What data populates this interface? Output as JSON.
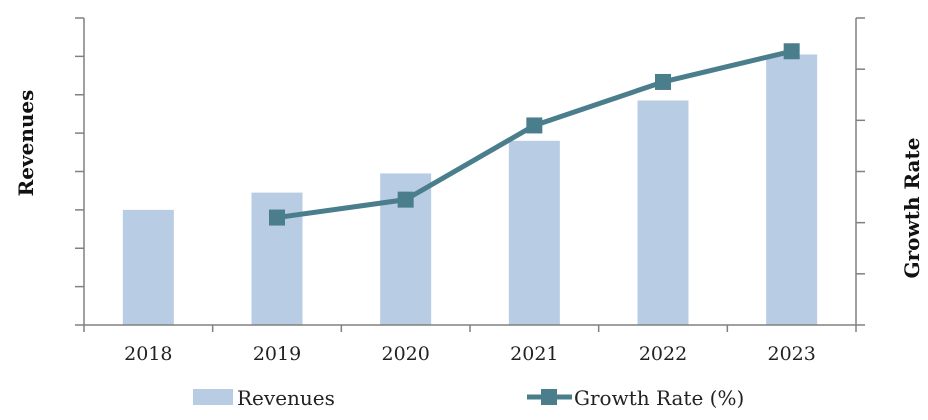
{
  "chart_data": {
    "type": "bar",
    "categories": [
      "2018",
      "2019",
      "2020",
      "2021",
      "2022",
      "2023"
    ],
    "series": [
      {
        "name": "Revenues",
        "type": "bar",
        "axis": "left",
        "values": [
          3.0,
          3.45,
          3.95,
          4.8,
          5.85,
          7.05
        ]
      },
      {
        "name": "Growth Rate (%)",
        "type": "line",
        "axis": "right",
        "values": [
          null,
          2.1,
          2.45,
          3.9,
          4.75,
          5.35
        ]
      }
    ],
    "ylabel": "Revenues",
    "y2label": "Growth Rate",
    "ylim": [
      0,
      8
    ],
    "y2lim": [
      0,
      6
    ],
    "colors": {
      "bar": "#b8cce4",
      "line": "#4a7e8c",
      "axis": "#808080"
    },
    "legend_position": "bottom",
    "grid": false
  }
}
